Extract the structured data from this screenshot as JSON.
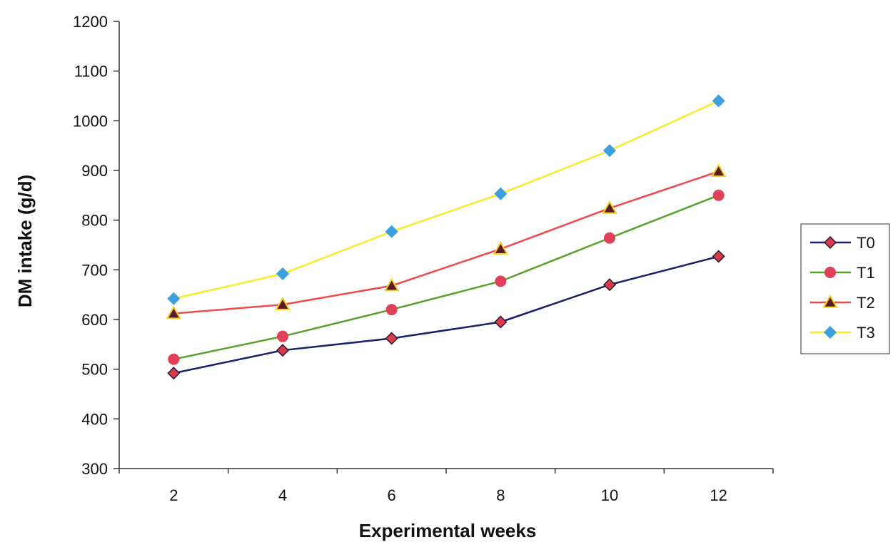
{
  "chart_data": {
    "type": "line",
    "xlabel": "Experimental weeks",
    "ylabel": "DM intake (g/d)",
    "categories": [
      "2",
      "4",
      "6",
      "8",
      "10",
      "12"
    ],
    "ylim": [
      300,
      1200
    ],
    "yticks": [
      "300",
      "400",
      "500",
      "600",
      "700",
      "800",
      "900",
      "1000",
      "1100",
      "1200"
    ],
    "grid": false,
    "legend_position": "right",
    "series": [
      {
        "name": "T0",
        "values": [
          492,
          538,
          562,
          595,
          670,
          727
        ],
        "line_color": "#1a1f6b",
        "marker": "diamond",
        "marker_fill": "#d93a4a",
        "marker_stroke": "#2a1a3a"
      },
      {
        "name": "T1",
        "values": [
          520,
          566,
          620,
          677,
          764,
          850
        ],
        "line_color": "#5aa02c",
        "marker": "circle",
        "marker_fill": "#e0405a",
        "marker_stroke": "#e0405a"
      },
      {
        "name": "T2",
        "values": [
          612,
          630,
          668,
          742,
          824,
          898
        ],
        "line_color": "#ef4a4a",
        "marker": "triangle",
        "marker_fill": "#5a1a2a",
        "marker_stroke": "#f2d21a"
      },
      {
        "name": "T3",
        "values": [
          642,
          692,
          777,
          853,
          940,
          1040
        ],
        "line_color": "#f4ee2a",
        "marker": "diamond",
        "marker_fill": "#3fa0e0",
        "marker_stroke": "#3fa0e0"
      }
    ]
  }
}
